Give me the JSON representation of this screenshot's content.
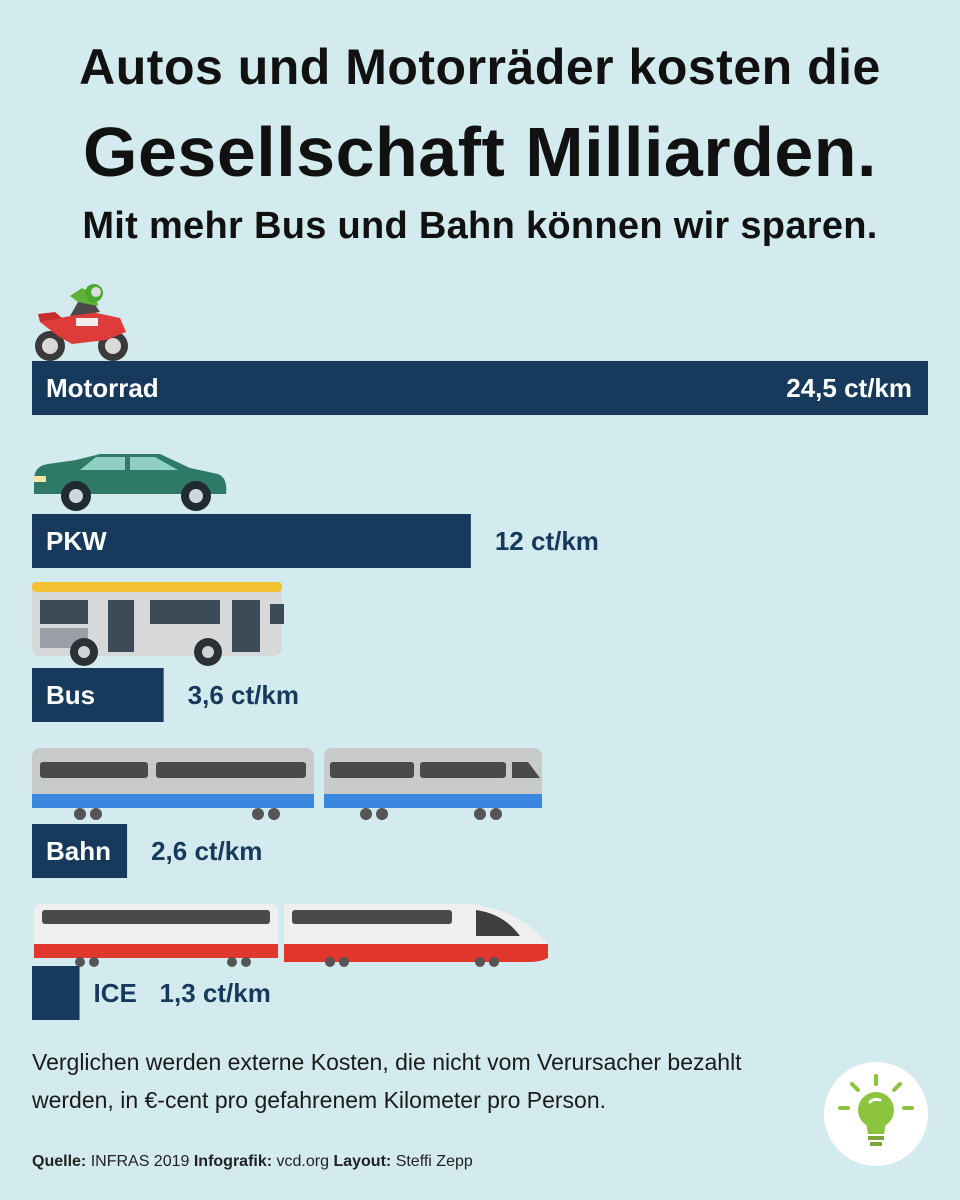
{
  "title": {
    "line1": "Autos und Motorräder kosten die",
    "line2": "Gesellschaft Milliarden.",
    "subtitle": "Mit mehr Bus und Bahn können wir sparen."
  },
  "chart_data": {
    "type": "bar",
    "orientation": "horizontal",
    "unit": "ct/km",
    "categories": [
      "Motorrad",
      "PKW",
      "Bus",
      "Bahn",
      "ICE"
    ],
    "values": [
      24.5,
      12,
      3.6,
      2.6,
      1.3
    ],
    "value_labels": [
      "24,5 ct/km",
      "12 ct/km",
      "3,6 ct/km",
      "2,6 ct/km",
      "1,3 ct/km"
    ],
    "icons": [
      "motorcycle-icon",
      "car-icon",
      "bus-icon",
      "regional-train-icon",
      "ice-train-icon"
    ],
    "bar_color": "#17395c",
    "label_color": "#17395c"
  },
  "footnote": "Verglichen werden externe Kosten, die nicht vom Verursacher bezahlt werden, in €-cent pro gefahrenem Kilometer pro Person.",
  "source": {
    "quelle_label": "Quelle:",
    "quelle_value": "INFRAS 2019",
    "infografik_label": "Infografik:",
    "infografik_value": "vcd.org",
    "layout_label": "Layout:",
    "layout_value": "Steffi Zepp"
  },
  "colors": {
    "background": "#d3ebee",
    "bar": "#17395c",
    "bulb": "#8cc43f"
  }
}
